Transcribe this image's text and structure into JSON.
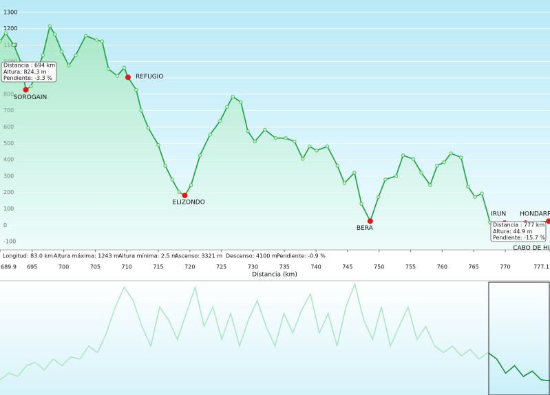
{
  "chart_data": [
    {
      "type": "area",
      "x_label": "Distancia  (km)",
      "color": "#17a043",
      "x": [
        689.9,
        690.8,
        692.1,
        693.2,
        694.0,
        694.8,
        695.9,
        696.7,
        697.8,
        698.6,
        699.7,
        700.8,
        701.9,
        703.5,
        705.2,
        706.1,
        707.1,
        708.5,
        709.6,
        710.2,
        711.5,
        712.3,
        713.4,
        715.0,
        716.1,
        717.2,
        718.3,
        719.2,
        720.2,
        721.6,
        723.2,
        724.8,
        725.9,
        726.8,
        728.1,
        729.2,
        730.3,
        731.9,
        733.6,
        735.2,
        736.6,
        737.9,
        739.0,
        740.1,
        741.8,
        743.4,
        744.5,
        746.1,
        747.2,
        748.6,
        749.9,
        751.0,
        752.7,
        753.8,
        755.4,
        756.7,
        758.1,
        759.2,
        760.3,
        761.4,
        763.0,
        764.1,
        765.2,
        766.3,
        767.6,
        769.9,
        773.2,
        776.9
      ],
      "values": [
        1123,
        1173,
        1100,
        996,
        827,
        848,
        954,
        1038,
        1216,
        1165,
        1060,
        975,
        1038,
        1157,
        1131,
        1123,
        954,
        912,
        962,
        903,
        827,
        701,
        595,
        490,
        363,
        279,
        203,
        182,
        245,
        426,
        553,
        637,
        722,
        785,
        751,
        574,
        511,
        583,
        532,
        532,
        511,
        405,
        481,
        456,
        481,
        363,
        257,
        321,
        131,
        25,
        173,
        279,
        300,
        426,
        405,
        321,
        245,
        363,
        384,
        439,
        414,
        236,
        173,
        194,
        17,
        13,
        13,
        25
      ],
      "xlim": [
        689.9,
        777.1
      ],
      "ylim": [
        -150,
        1375
      ],
      "xticks": [
        689.9,
        695,
        700,
        705,
        710,
        715,
        720,
        725,
        730,
        735,
        740,
        745,
        750,
        755,
        760,
        765,
        770,
        777.1
      ],
      "yticks": [
        -100,
        0,
        100,
        200,
        300,
        400,
        500,
        600,
        700,
        800,
        900,
        1000,
        1100,
        1200,
        1300
      ],
      "grid": true,
      "waypoints": [
        {
          "label": "SOROGAIN",
          "x": 694.0,
          "y": 827
        },
        {
          "label": "REFUGIO",
          "x": 710.2,
          "y": 903
        },
        {
          "label": "ELIZONDO",
          "x": 719.2,
          "y": 182
        },
        {
          "label": "BERA",
          "x": 748.6,
          "y": 25
        },
        {
          "label": "IRUN",
          "x": 769.9,
          "y": 13
        },
        {
          "label": "HONDARRIBIA",
          "x": 773.2,
          "y": 13
        },
        {
          "label": "CABO DE HIGUER",
          "x": 776.9,
          "y": 25
        }
      ],
      "tooltips": [
        {
          "lines": [
            "Distancia : 694 km",
            "Altura: 824.3 m",
            "Pendiente: -3.3 %"
          ]
        },
        {
          "lines": [
            "Distancia : 777 km",
            "Altura: 44.9 m",
            "Pendiente: -15.7 %"
          ]
        }
      ],
      "stats": [
        "Longitud: 83.0 km",
        "Altura máxima: 1243 m",
        "Altura mínima: 2.5 m",
        "Ascenso: 3321 m",
        "Descenso: 4100 m",
        "Pendiente: -0.9 %"
      ]
    },
    {
      "type": "area",
      "color": "#8fdcaa",
      "selected_color": "#0f8a35",
      "ylim": [
        0,
        105
      ],
      "values": [
        14,
        20,
        17,
        27,
        30,
        23,
        33,
        27,
        35,
        33,
        45,
        39,
        57,
        81,
        99,
        87,
        63,
        45,
        81,
        69,
        51,
        75,
        99,
        63,
        81,
        51,
        75,
        45,
        69,
        87,
        63,
        45,
        75,
        57,
        78,
        93,
        57,
        75,
        45,
        81,
        102,
        69,
        51,
        81,
        45,
        63,
        81,
        51,
        63,
        45,
        39,
        45,
        36,
        42,
        33,
        39,
        33,
        20,
        27,
        17,
        22,
        14,
        13
      ]
    }
  ]
}
